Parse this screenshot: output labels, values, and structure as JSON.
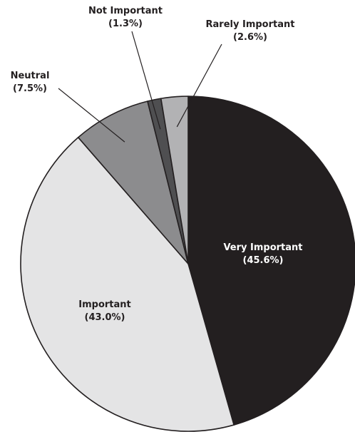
{
  "chart_data": {
    "type": "pie",
    "slices": [
      {
        "label": "Very Important",
        "pct_text": "(45.6%)",
        "value": 45.6,
        "color": "#231f20"
      },
      {
        "label": "Important",
        "pct_text": "(43.0%)",
        "value": 43.0,
        "color": "#e4e4e5"
      },
      {
        "label": "Neutral",
        "pct_text": "(7.5%)",
        "value": 7.5,
        "color": "#8c8c8e"
      },
      {
        "label": "Not Important",
        "pct_text": "(1.3%)",
        "value": 1.3,
        "color": "#4f4f51"
      },
      {
        "label": "Rarely Important",
        "pct_text": "(2.6%)",
        "value": 2.6,
        "color": "#b2b2b4"
      }
    ],
    "start_angle": "12 o'clock",
    "direction": "clockwise",
    "legend": "none"
  }
}
